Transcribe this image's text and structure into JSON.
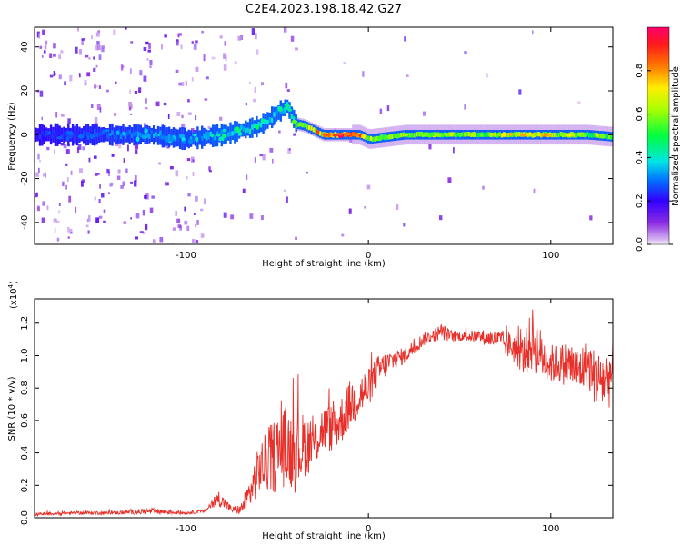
{
  "title": "C2E4.2023.198.18.42.G27",
  "colorbar": {
    "label": "Normalized spectral amplitude",
    "ticks": [
      "0.0",
      "0.2",
      "0.4",
      "0.6",
      "0.8"
    ],
    "range": [
      0,
      1
    ]
  },
  "chart_data": [
    {
      "type": "heatmap",
      "title": "C2E4.2023.198.18.42.G27",
      "xlabel": "Height of straight line (km)",
      "ylabel": "Frequency (Hz)",
      "xlim": [
        -183,
        134
      ],
      "ylim": [
        -50,
        49
      ],
      "x_ticks": [
        -100,
        0,
        100
      ],
      "y_ticks": [
        -40,
        -20,
        0,
        20,
        40
      ],
      "x_tick_labels": [
        "-100",
        "0",
        "100"
      ],
      "y_tick_labels": [
        "-40",
        "-20",
        "0",
        "20",
        "40"
      ],
      "ridge": {
        "description": "Doppler frequency ridge center",
        "x": [
          -183,
          -150,
          -120,
          -100,
          -80,
          -60,
          -50,
          -45,
          -40,
          -35,
          -30,
          -25,
          -20,
          -10,
          -5,
          0,
          10,
          20,
          40,
          60,
          80,
          100,
          120,
          134
        ],
        "y": [
          0,
          0,
          0,
          -2,
          0,
          4,
          10,
          13,
          5,
          4,
          2,
          0,
          0,
          0,
          0,
          -2,
          -1,
          0,
          0,
          0,
          0,
          0,
          0,
          -1
        ],
        "amplitude": [
          0.25,
          0.3,
          0.35,
          0.35,
          0.4,
          0.45,
          0.4,
          0.45,
          0.55,
          0.7,
          0.75,
          0.8,
          0.9,
          0.92,
          0.85,
          0.6,
          0.6,
          0.65,
          0.6,
          0.65,
          0.7,
          0.7,
          0.6,
          0.6
        ]
      },
      "colorbar_label": "Normalized spectral amplitude",
      "colorbar_range": [
        0,
        1
      ],
      "grid": false
    },
    {
      "type": "line",
      "xlabel": "Height of straight line (km)",
      "ylabel": "SNR (10 * v/v)",
      "y_multiplier": "(x10",
      "y_multiplier_exp": "4",
      "y_multiplier_close": ")",
      "xlim": [
        -183,
        134
      ],
      "ylim": [
        0,
        1.35
      ],
      "x_ticks": [
        -100,
        0,
        100
      ],
      "y_ticks": [
        0.0,
        0.2,
        0.4,
        0.6,
        0.8,
        1.0,
        1.2
      ],
      "x_tick_labels": [
        "-100",
        "0",
        "100"
      ],
      "y_tick_labels": [
        "0.0",
        "0.2",
        "0.4",
        "0.6",
        "0.8",
        "1.0",
        "1.2"
      ],
      "series": [
        {
          "color": "#e8302a",
          "x": [
            -183,
            -160,
            -140,
            -120,
            -100,
            -90,
            -82,
            -75,
            -70,
            -65,
            -60,
            -55,
            -50,
            -45,
            -40,
            -35,
            -30,
            -25,
            -20,
            -15,
            -10,
            -5,
            0,
            5,
            10,
            15,
            20,
            25,
            30,
            35,
            40,
            45,
            50,
            60,
            70,
            80,
            85,
            90,
            95,
            100,
            105,
            110,
            115,
            120,
            125,
            130,
            134
          ],
          "y": [
            0.02,
            0.03,
            0.03,
            0.04,
            0.03,
            0.04,
            0.12,
            0.05,
            0.05,
            0.15,
            0.3,
            0.35,
            0.4,
            0.45,
            0.4,
            0.45,
            0.45,
            0.55,
            0.55,
            0.6,
            0.7,
            0.75,
            0.8,
            0.9,
            0.95,
            0.98,
            1.0,
            1.05,
            1.1,
            1.12,
            1.15,
            1.12,
            1.12,
            1.12,
            1.1,
            1.05,
            1.0,
            1.1,
            1.0,
            0.95,
            0.95,
            0.95,
            0.9,
            0.95,
            0.85,
            0.85,
            0.9
          ],
          "noise": [
            0.01,
            0.01,
            0.01,
            0.02,
            0.01,
            0.01,
            0.05,
            0.02,
            0.03,
            0.1,
            0.15,
            0.2,
            0.25,
            0.25,
            0.25,
            0.2,
            0.15,
            0.15,
            0.15,
            0.15,
            0.15,
            0.15,
            0.12,
            0.1,
            0.08,
            0.06,
            0.05,
            0.05,
            0.04,
            0.04,
            0.05,
            0.04,
            0.03,
            0.04,
            0.06,
            0.1,
            0.12,
            0.2,
            0.15,
            0.12,
            0.12,
            0.15,
            0.15,
            0.15,
            0.18,
            0.2,
            0.2
          ]
        }
      ],
      "grid": false
    }
  ]
}
